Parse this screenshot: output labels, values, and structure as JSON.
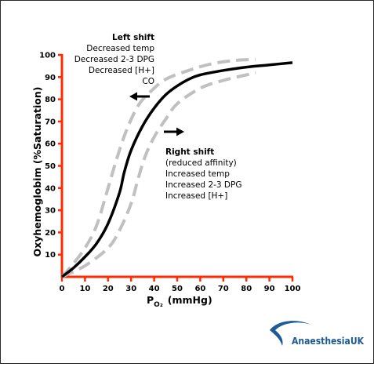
{
  "chart_data": {
    "type": "line",
    "title": "",
    "xlabel_main": "P",
    "xlabel_sub": "O₂",
    "xlabel_unit": "(mmHg)",
    "ylabel": "Oxyhemoglobim  (%Saturation)",
    "xlim": [
      0,
      100
    ],
    "ylim": [
      0,
      100
    ],
    "x_ticks": [
      0,
      10,
      20,
      30,
      40,
      50,
      60,
      70,
      80,
      90,
      100
    ],
    "y_ticks": [
      10,
      20,
      30,
      40,
      50,
      60,
      70,
      80,
      90,
      100
    ],
    "axis_color": "#ff2a00",
    "series": [
      {
        "style": "solid",
        "color": "#000000",
        "x": [
          0,
          5,
          10,
          15,
          20,
          25,
          27,
          30,
          35,
          40,
          45,
          50,
          55,
          60,
          70,
          80,
          90,
          100
        ],
        "y": [
          0,
          4,
          9,
          15,
          24,
          38,
          47,
          57,
          68,
          76,
          82,
          86,
          89,
          91,
          93,
          94.5,
          95.5,
          96.5
        ]
      },
      {
        "style": "dashed",
        "color": "#c0c0c0",
        "x": [
          0,
          5,
          10,
          15,
          20,
          24,
          28,
          33,
          38,
          45,
          55,
          65,
          75,
          84
        ],
        "y": [
          0,
          6,
          13,
          23,
          40,
          54,
          66,
          77,
          83,
          89,
          93,
          96,
          97.5,
          98
        ]
      },
      {
        "style": "dashed",
        "color": "#c0c0c0",
        "x": [
          0,
          10,
          20,
          25,
          30,
          33,
          36,
          40,
          45,
          50,
          60,
          70,
          80,
          84
        ],
        "y": [
          0,
          5,
          13,
          21,
          33,
          44,
          54,
          63,
          71,
          78,
          85,
          88.5,
          91,
          92
        ]
      }
    ],
    "annotations": {
      "left_shift": {
        "title": "Left shift",
        "lines": [
          "Decreased temp",
          "Decreased 2-3 DPG",
          "Decreased [H+]",
          "CO"
        ]
      },
      "right_shift": {
        "title": "Right shift",
        "lines": [
          "(reduced affinity)",
          "Increased temp",
          "Increased 2-3 DPG",
          "Increased [H+]"
        ]
      }
    }
  },
  "logo": {
    "text": "Anaesthesia",
    "text_bold": "UK",
    "color": "#1e5a96"
  }
}
